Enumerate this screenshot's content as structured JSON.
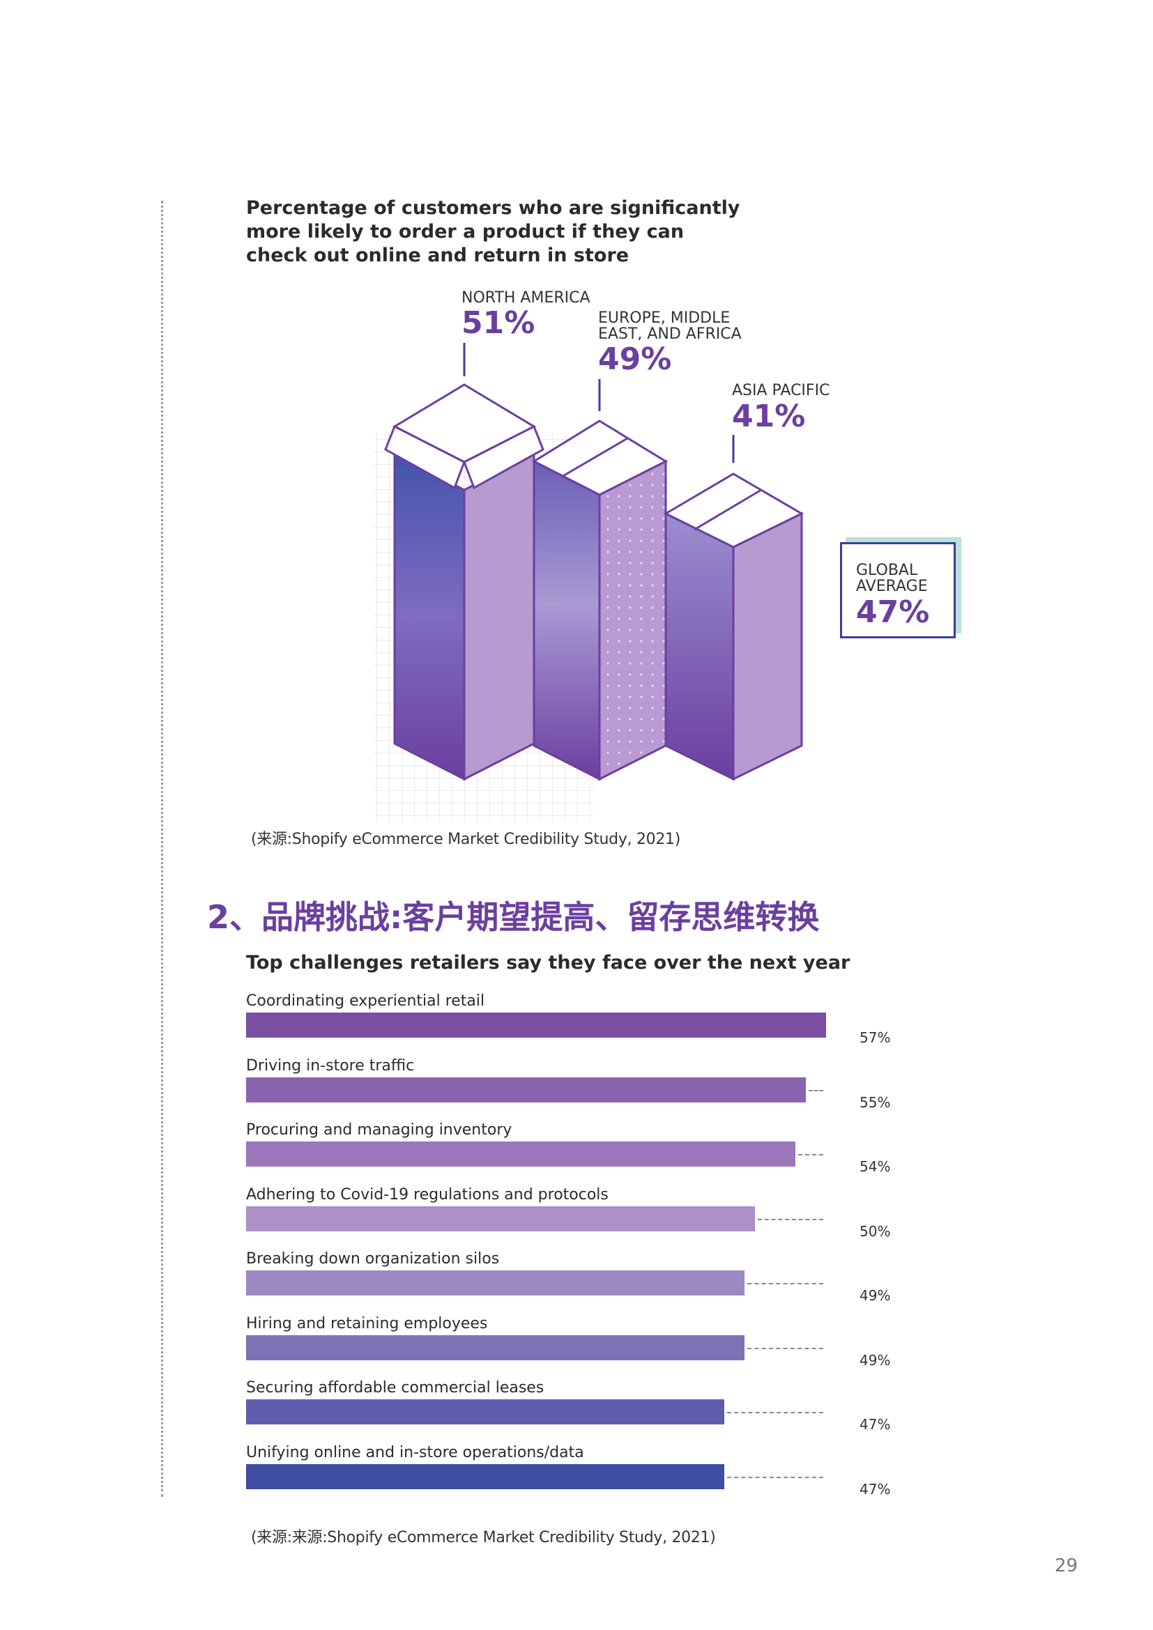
{
  "chart_data": [
    {
      "type": "bar",
      "title": "Percentage of customers who are significantly more likely to order a product if they can check out online and return in store",
      "categories": [
        "NORTH AMERICA",
        "EUROPE, MIDDLE EAST, AND AFRICA",
        "ASIA PACIFIC"
      ],
      "values": [
        51,
        49,
        41
      ],
      "unit": "%",
      "annotations": [
        {
          "label": "GLOBAL AVERAGE",
          "value": 47
        }
      ],
      "colors": [
        "#4a55b0",
        "#9a5cc0",
        "#b79ad0"
      ]
    },
    {
      "type": "bar",
      "orientation": "horizontal",
      "title": "Top challenges retailers say they face over the next year",
      "categories": [
        "Coordinating experiential retail",
        "Driving in-store traffic",
        "Procuring and managing inventory",
        "Adhering to Covid-19 regulations and protocols",
        "Breaking down organization silos",
        "Hiring and retaining employees",
        "Securing affordable commercial leases",
        "Unifying online and in-store operations/data"
      ],
      "values": [
        57,
        55,
        54,
        50,
        49,
        49,
        47,
        47
      ],
      "unit": "%",
      "xlim": [
        0,
        57
      ]
    }
  ],
  "chart1": {
    "title": "Percentage of customers who are significantly more likely to order a product if they can check out online and return in store",
    "regions": [
      {
        "name": "NORTH AMERICA",
        "pct": "51%"
      },
      {
        "name": "EUROPE, MIDDLE EAST, AND AFRICA",
        "pct": "49%"
      },
      {
        "name": "ASIA PACIFIC",
        "pct": "41%"
      }
    ],
    "global": {
      "label": "GLOBAL AVERAGE",
      "pct": "47%"
    },
    "source": "(来源:Shopify eCommerce Market Credibility Study, 2021)"
  },
  "section_heading": "2、品牌挑战:客户期望提高、留存思维转换",
  "chart2": {
    "title": "Top challenges retailers say they face over the next year",
    "bars": [
      {
        "label": "Coordinating experiential retail",
        "value": 57,
        "value_text": "57%",
        "color": "#7a4fa3"
      },
      {
        "label": "Driving in-store traffic",
        "value": 55,
        "value_text": "55%",
        "color": "#8a62ae"
      },
      {
        "label": "Procuring and managing inventory",
        "value": 54,
        "value_text": "54%",
        "color": "#9a78bb"
      },
      {
        "label": "Adhering to Covid-19 regulations and protocols",
        "value": 50,
        "value_text": "50%",
        "color": "#ab90c6"
      },
      {
        "label": "Breaking down organization silos",
        "value": 49,
        "value_text": "49%",
        "color": "#9d89c4"
      },
      {
        "label": "Hiring and retaining employees",
        "value": 49,
        "value_text": "49%",
        "color": "#7e72b6"
      },
      {
        "label": "Securing affordable commercial leases",
        "value": 47,
        "value_text": "47%",
        "color": "#5e5cab"
      },
      {
        "label": "Unifying online and in-store operations/data",
        "value": 47,
        "value_text": "47%",
        "color": "#3e4ca1"
      }
    ],
    "source": "(来源:来源:Shopify eCommerce Market Credibility Study, 2021)"
  },
  "page_number": "29"
}
